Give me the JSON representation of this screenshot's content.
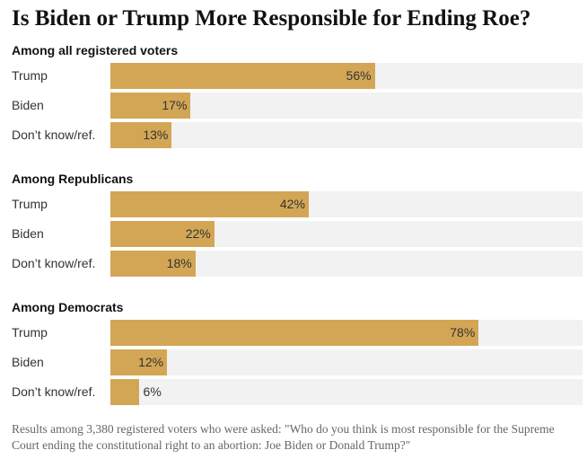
{
  "title": "Is Biden or Trump More Responsible for Ending Roe?",
  "footnote": "Results among 3,380 registered voters who were asked: \"Who do you think is most responsible for the Supreme Court ending the constitutional right to an abortion: Joe Biden or Donald Trump?\"",
  "colors": {
    "bar": "#d3a655",
    "track": "#f2f2f2"
  },
  "chart_data": {
    "type": "bar",
    "orientation": "horizontal",
    "title": "Is Biden or Trump More Responsible for Ending Roe?",
    "xlim": [
      0,
      100
    ],
    "unit": "%",
    "categories": [
      "Trump",
      "Biden",
      "Don’t know/ref."
    ],
    "groups": [
      {
        "name": "Among all registered voters",
        "values": [
          56,
          17,
          13
        ]
      },
      {
        "name": "Among Republicans",
        "values": [
          42,
          22,
          18
        ]
      },
      {
        "name": "Among Democrats",
        "values": [
          78,
          12,
          6
        ]
      }
    ]
  }
}
